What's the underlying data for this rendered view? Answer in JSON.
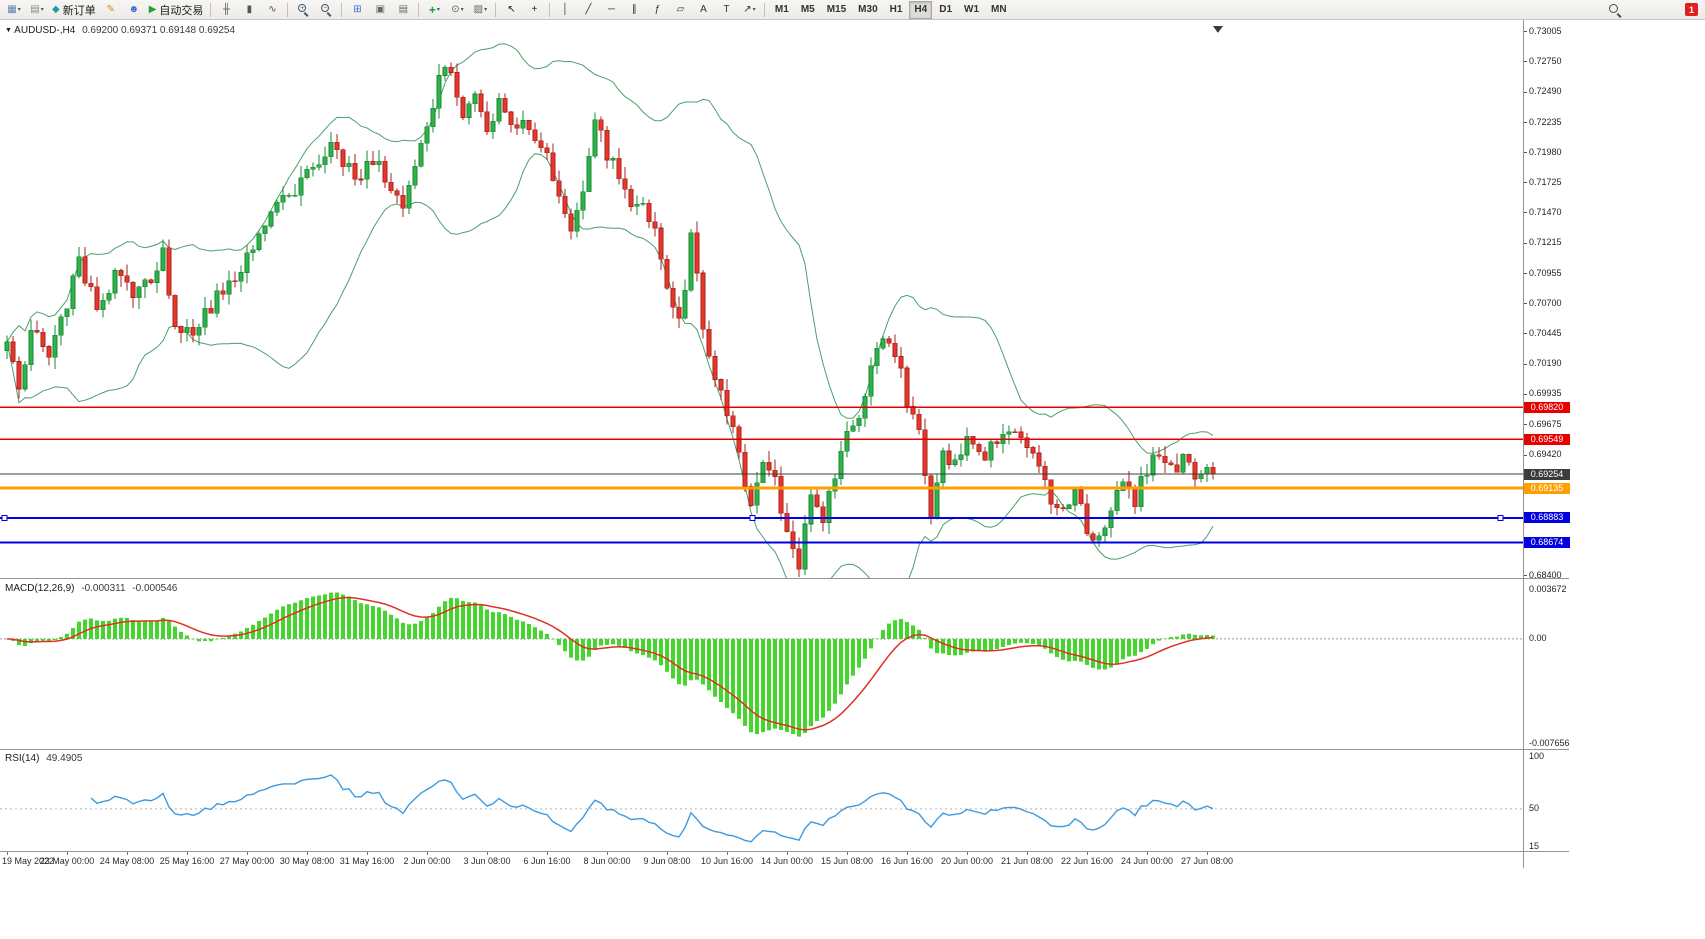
{
  "icons": {
    "symbol_caret": "▼"
  },
  "toolbar": {
    "buttons": [
      {
        "name": "new-chart",
        "glyph": "▦",
        "color": "#5b7fb4",
        "caret": true
      },
      {
        "name": "profiles",
        "glyph": "▤",
        "color": "#878787",
        "caret": true
      },
      {
        "name": "new-order",
        "glyph": "◆",
        "color": "#18a0a8",
        "label": "新订单"
      },
      {
        "name": "metaeditor",
        "glyph": "✎",
        "color": "#c8960c"
      },
      {
        "name": "community",
        "glyph": "☻",
        "color": "#3a6fd8"
      },
      {
        "name": "algo-trading",
        "glyph": "▶",
        "color": "#1fa033",
        "label": "自动交易"
      },
      {
        "sep": true
      },
      {
        "name": "chart-bars",
        "glyph": "╫",
        "color": "#555555"
      },
      {
        "name": "chart-candlesticks",
        "glyph": "▮",
        "color": "#555555"
      },
      {
        "name": "chart-line",
        "glyph": "∿",
        "color": "#555555"
      },
      {
        "sep": true
      },
      {
        "name": "zoom-in",
        "mag": "+"
      },
      {
        "name": "zoom-out",
        "mag": "−"
      },
      {
        "sep": true
      },
      {
        "name": "tile-windows",
        "glyph": "⊞",
        "color": "#3a6fd8"
      },
      {
        "name": "cascade-windows",
        "glyph": "▣",
        "color": "#666666"
      },
      {
        "name": "arrange-icons",
        "glyph": "▤",
        "color": "#666666"
      },
      {
        "sep": true
      },
      {
        "name": "indicators",
        "glyph": "+",
        "color": "#18a52c",
        "caret": true,
        "bold": true
      },
      {
        "name": "periods",
        "glyph": "⊙",
        "color": "#555555",
        "caret": true
      },
      {
        "name": "templates",
        "glyph": "▨",
        "color": "#666666",
        "caret": true
      },
      {
        "sep": true
      },
      {
        "name": "cursor",
        "glyph": "↖",
        "color": "#222222"
      },
      {
        "name": "crosshair",
        "glyph": "+",
        "color": "#222222"
      },
      {
        "sep": true
      },
      {
        "name": "vertical-line",
        "glyph": "│",
        "color": "#333333"
      },
      {
        "name": "trend-line",
        "glyph": "╱",
        "color": "#333333"
      },
      {
        "name": "horizontal-line",
        "glyph": "─",
        "color": "#333333"
      },
      {
        "name": "equidistant-channel",
        "glyph": "∥",
        "color": "#333333"
      },
      {
        "name": "fibonacci",
        "glyph": "ƒ",
        "color": "#333333"
      },
      {
        "name": "shapes",
        "glyph": "▱",
        "color": "#333333"
      },
      {
        "name": "text",
        "glyph": "A",
        "color": "#333333"
      },
      {
        "name": "text-label",
        "glyph": "T",
        "color": "#333333"
      },
      {
        "name": "arrows",
        "glyph": "↗",
        "color": "#333333",
        "caret": true
      },
      {
        "sep": true
      }
    ],
    "timeframes": [
      "M1",
      "M5",
      "M15",
      "M30",
      "H1",
      "H4",
      "D1",
      "W1",
      "MN"
    ],
    "active_timeframe": "H4",
    "notification_count": "1"
  },
  "chart_data": {
    "type": "candlestick",
    "symbol_tf": "AUDUSD-,H4",
    "ohlc_text": "0.69200 0.69371 0.69148 0.69254",
    "last_close": 0.69254,
    "candle_count": 202,
    "y_axis": {
      "min": 0.684,
      "max": 0.73005,
      "labels": [
        "0.73005",
        "0.72750",
        "0.72490",
        "0.72235",
        "0.71980",
        "0.71725",
        "0.71470",
        "0.71215",
        "0.70955",
        "0.70700",
        "0.70445",
        "0.70190",
        "0.69935",
        "0.69675",
        "0.69420",
        "0.68400"
      ]
    },
    "x_labels": [
      "19 May 2022",
      "23 May 00:00",
      "24 May 08:00",
      "25 May 16:00",
      "27 May 00:00",
      "30 May 08:00",
      "31 May 16:00",
      "2 Jun 00:00",
      "3 Jun 08:00",
      "6 Jun 16:00",
      "8 Jun 00:00",
      "9 Jun 08:00",
      "10 Jun 16:00",
      "14 Jun 00:00",
      "15 Jun 08:00",
      "16 Jun 16:00",
      "20 Jun 00:00",
      "21 Jun 08:00",
      "22 Jun 16:00",
      "24 Jun 00:00",
      "27 Jun 08:00"
    ],
    "price_path": [
      [
        0,
        0.703
      ],
      [
        2,
        0.7
      ],
      [
        4,
        0.7045
      ],
      [
        7,
        0.7025
      ],
      [
        10,
        0.707
      ],
      [
        12,
        0.711
      ],
      [
        15,
        0.7062
      ],
      [
        18,
        0.7095
      ],
      [
        21,
        0.7075
      ],
      [
        24,
        0.7092
      ],
      [
        26,
        0.711
      ],
      [
        28,
        0.7057
      ],
      [
        31,
        0.7042
      ],
      [
        34,
        0.7067
      ],
      [
        38,
        0.7092
      ],
      [
        42,
        0.713
      ],
      [
        46,
        0.7157
      ],
      [
        50,
        0.718
      ],
      [
        54,
        0.72
      ],
      [
        58,
        0.7176
      ],
      [
        61,
        0.719
      ],
      [
        64,
        0.7172
      ],
      [
        66,
        0.7148
      ],
      [
        68,
        0.718
      ],
      [
        70,
        0.7222
      ],
      [
        72,
        0.7258
      ],
      [
        74,
        0.727
      ],
      [
        76,
        0.7232
      ],
      [
        78,
        0.7254
      ],
      [
        80,
        0.7216
      ],
      [
        82,
        0.724
      ],
      [
        85,
        0.7222
      ],
      [
        88,
        0.7214
      ],
      [
        90,
        0.7196
      ],
      [
        92,
        0.716
      ],
      [
        94,
        0.7126
      ],
      [
        96,
        0.7166
      ],
      [
        98,
        0.7228
      ],
      [
        100,
        0.7198
      ],
      [
        103,
        0.7162
      ],
      [
        106,
        0.7152
      ],
      [
        108,
        0.713
      ],
      [
        110,
        0.7085
      ],
      [
        112,
        0.705
      ],
      [
        114,
        0.7125
      ],
      [
        116,
        0.7055
      ],
      [
        118,
        0.7005
      ],
      [
        120,
        0.698
      ],
      [
        122,
        0.6945
      ],
      [
        124,
        0.69
      ],
      [
        126,
        0.693
      ],
      [
        128,
        0.6918
      ],
      [
        130,
        0.688
      ],
      [
        132,
        0.6852
      ],
      [
        134,
        0.6908
      ],
      [
        136,
        0.689
      ],
      [
        138,
        0.6922
      ],
      [
        140,
        0.6958
      ],
      [
        142,
        0.6975
      ],
      [
        144,
        0.7012
      ],
      [
        146,
        0.7045
      ],
      [
        148,
        0.7028
      ],
      [
        150,
        0.6988
      ],
      [
        152,
        0.6962
      ],
      [
        154,
        0.6895
      ],
      [
        156,
        0.6938
      ],
      [
        158,
        0.6932
      ],
      [
        160,
        0.695
      ],
      [
        162,
        0.694
      ],
      [
        164,
        0.6946
      ],
      [
        166,
        0.6956
      ],
      [
        168,
        0.696
      ],
      [
        170,
        0.6945
      ],
      [
        172,
        0.6928
      ],
      [
        174,
        0.69
      ],
      [
        176,
        0.689
      ],
      [
        178,
        0.6908
      ],
      [
        180,
        0.688
      ],
      [
        182,
        0.6872
      ],
      [
        184,
        0.69
      ],
      [
        186,
        0.6912
      ],
      [
        188,
        0.6903
      ],
      [
        190,
        0.6932
      ],
      [
        192,
        0.6948
      ],
      [
        194,
        0.6928
      ],
      [
        196,
        0.694
      ],
      [
        198,
        0.6926
      ],
      [
        201,
        0.69254
      ]
    ],
    "hlines": [
      {
        "price": 0.6982,
        "label": "0.69820",
        "color": "#e60000",
        "width": 1.5
      },
      {
        "price": 0.69549,
        "label": "0.69549",
        "color": "#e60000",
        "width": 1.5
      },
      {
        "price": 0.69254,
        "label": "0.69254",
        "color": "#3c3c3c",
        "width": 1
      },
      {
        "price": 0.69135,
        "label": "0.69135",
        "color": "#ffa000",
        "width": 3
      },
      {
        "price": 0.68883,
        "label": "0.68883",
        "color": "#0000e0",
        "width": 2,
        "selected": true
      },
      {
        "price": 0.68674,
        "label": "0.68674",
        "color": "#0000e0",
        "width": 2
      }
    ],
    "indicators": {
      "bollinger": {
        "name": "Bollinger Bands",
        "period": 20,
        "deviation": 2,
        "color": "#4aa06a"
      },
      "macd": {
        "label": "MACD(12,26,9)",
        "value_main": "-0.000311",
        "value_signal": "-0.000546",
        "scale_labels": [
          {
            "v": 0.003672,
            "t": "0.003672"
          },
          {
            "v": 0,
            "t": "0.00"
          },
          {
            "v": -0.007656,
            "t": "-0.007656"
          }
        ],
        "hist_color": "#44d62c",
        "signal_color": "#e02f23"
      },
      "rsi": {
        "label": "RSI(14)",
        "value": "49.4905",
        "scale_labels": [
          {
            "v": 100,
            "t": "100"
          },
          {
            "v": 50,
            "t": "50"
          },
          {
            "v": 15,
            "t": "15"
          }
        ],
        "color": "#3d9ae0"
      }
    },
    "colors": {
      "up_fill": "#2fb24a",
      "up_stroke": "#168a31",
      "down_fill": "#e8362a",
      "down_stroke": "#a7221a"
    }
  }
}
